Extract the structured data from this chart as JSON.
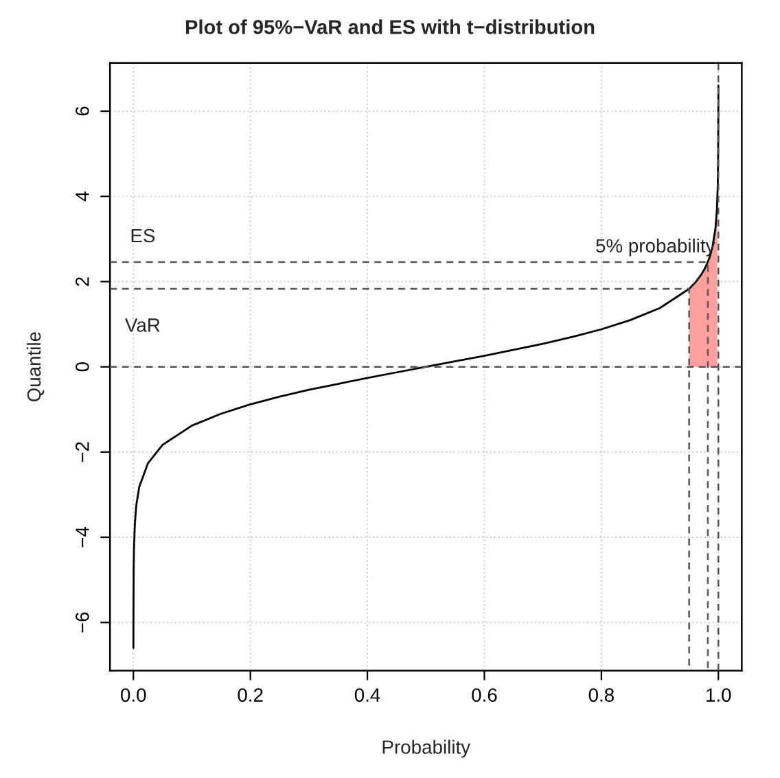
{
  "chart_data": {
    "type": "line",
    "title": "Plot of 95%−VaR and ES with t−distribution",
    "xlabel": "Probability",
    "ylabel": "Quantile",
    "xlim": [
      -0.04,
      1.04
    ],
    "ylim": [
      -7.13,
      7.13
    ],
    "xticks": [
      {
        "value": 0,
        "label": "0.0"
      },
      {
        "value": 0.2,
        "label": "0.2"
      },
      {
        "value": 0.4,
        "label": "0.4"
      },
      {
        "value": 0.6,
        "label": "0.6"
      },
      {
        "value": 0.8,
        "label": "0.8"
      },
      {
        "value": 1,
        "label": "1.0"
      }
    ],
    "yticks": [
      {
        "value": -6,
        "label": "−6"
      },
      {
        "value": -4,
        "label": "−4"
      },
      {
        "value": -2,
        "label": "−2"
      },
      {
        "value": 0,
        "label": "0"
      },
      {
        "value": 2,
        "label": "2"
      },
      {
        "value": 4,
        "label": "4"
      },
      {
        "value": 6,
        "label": "6"
      }
    ],
    "grid": true,
    "series": [
      {
        "type": "area",
        "color": "#ff9f9f",
        "x": [
          0.95,
          0.96,
          0.97,
          0.975,
          0.98,
          0.985,
          0.99,
          0.995,
          0.9975,
          0.998
        ],
        "values": [
          1.83,
          1.97,
          2.15,
          2.26,
          2.4,
          2.57,
          2.82,
          3.25,
          3.69,
          3.85
        ]
      },
      {
        "color": "#000000",
        "line_style": "solid",
        "x": [
          5e-05,
          0.0001,
          0.0005,
          0.001,
          0.0025,
          0.005,
          0.01,
          0.025,
          0.05,
          0.1,
          0.15,
          0.2,
          0.25,
          0.3,
          0.35,
          0.4,
          0.45,
          0.5,
          0.55,
          0.6,
          0.65,
          0.7,
          0.75,
          0.8,
          0.85,
          0.9,
          0.95,
          0.96,
          0.97,
          0.975,
          0.98,
          0.985,
          0.99,
          0.995,
          0.9975,
          0.999,
          0.9995,
          0.9999,
          0.99995
        ],
        "values": [
          -6.6,
          -5.98,
          -4.78,
          -4.3,
          -3.69,
          -3.25,
          -2.82,
          -2.26,
          -1.83,
          -1.38,
          -1.1,
          -0.88,
          -0.7,
          -0.54,
          -0.4,
          -0.26,
          -0.13,
          0,
          0.13,
          0.26,
          0.4,
          0.54,
          0.7,
          0.88,
          1.1,
          1.38,
          1.83,
          1.97,
          2.15,
          2.26,
          2.4,
          2.57,
          2.82,
          3.25,
          3.69,
          4.3,
          4.78,
          5.98,
          6.6
        ]
      },
      {
        "type": "line",
        "color": "#555555",
        "line_style": "dashed",
        "x": [
          -0.04,
          0.95,
          0.95
        ],
        "values": [
          1.83,
          1.83,
          -7.13
        ]
      },
      {
        "type": "line",
        "color": "#555555",
        "line_style": "dashed",
        "x": [
          -0.04,
          0.982,
          0.982
        ],
        "values": [
          2.46,
          2.46,
          -7.13
        ]
      },
      {
        "type": "line",
        "color": "#555555",
        "line_style": "dashed",
        "x": [
          -0.04,
          1.04
        ],
        "values": [
          0,
          0
        ]
      },
      {
        "type": "line",
        "color": "#555555",
        "line_style": "dashed",
        "x": [
          1,
          1
        ],
        "values": [
          -7.13,
          7.13
        ]
      }
    ],
    "annotations": [
      "ES",
      "VaR",
      "5% probability"
    ]
  }
}
